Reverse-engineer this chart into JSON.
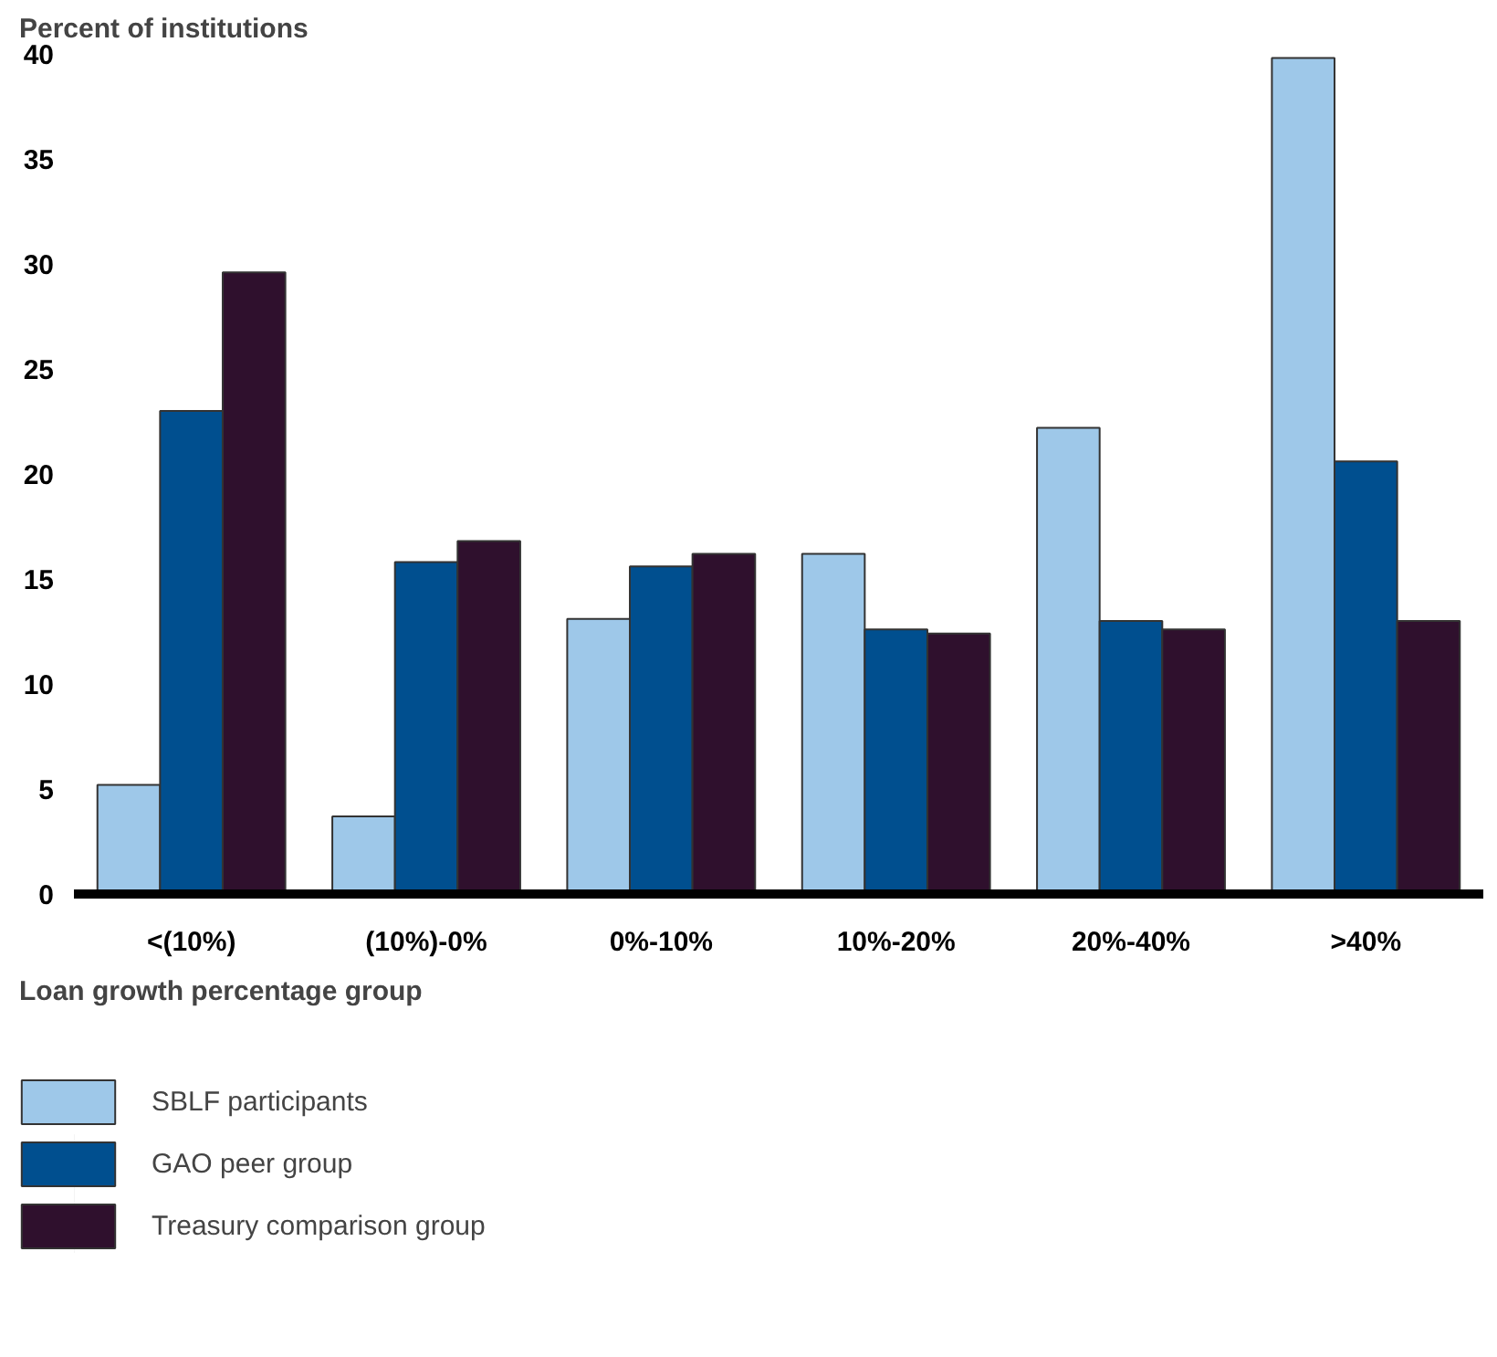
{
  "chart_data": {
    "type": "bar",
    "ylabel": "Percent of institutions",
    "xlabel": "Loan growth percentage group",
    "categories": [
      "<(10%)",
      "(10%)-0%",
      "0%-10%",
      "10%-20%",
      "20%-40%",
      ">40%"
    ],
    "series": [
      {
        "name": "SBLF participants",
        "color": "#9ec8e9",
        "values": [
          5.2,
          3.7,
          13.1,
          16.2,
          22.2,
          39.8
        ]
      },
      {
        "name": "GAO peer group",
        "color": "#004f8f",
        "values": [
          23.0,
          15.8,
          15.6,
          12.6,
          13.0,
          20.6
        ]
      },
      {
        "name": "Treasury comparison group",
        "color": "#2f102d",
        "values": [
          29.6,
          16.8,
          16.2,
          12.4,
          12.6,
          13.0
        ]
      }
    ],
    "ylim": [
      0,
      40
    ],
    "yticks": [
      0,
      5,
      10,
      15,
      20,
      25,
      30,
      35,
      40
    ],
    "grid": false,
    "legend": "bottom"
  }
}
